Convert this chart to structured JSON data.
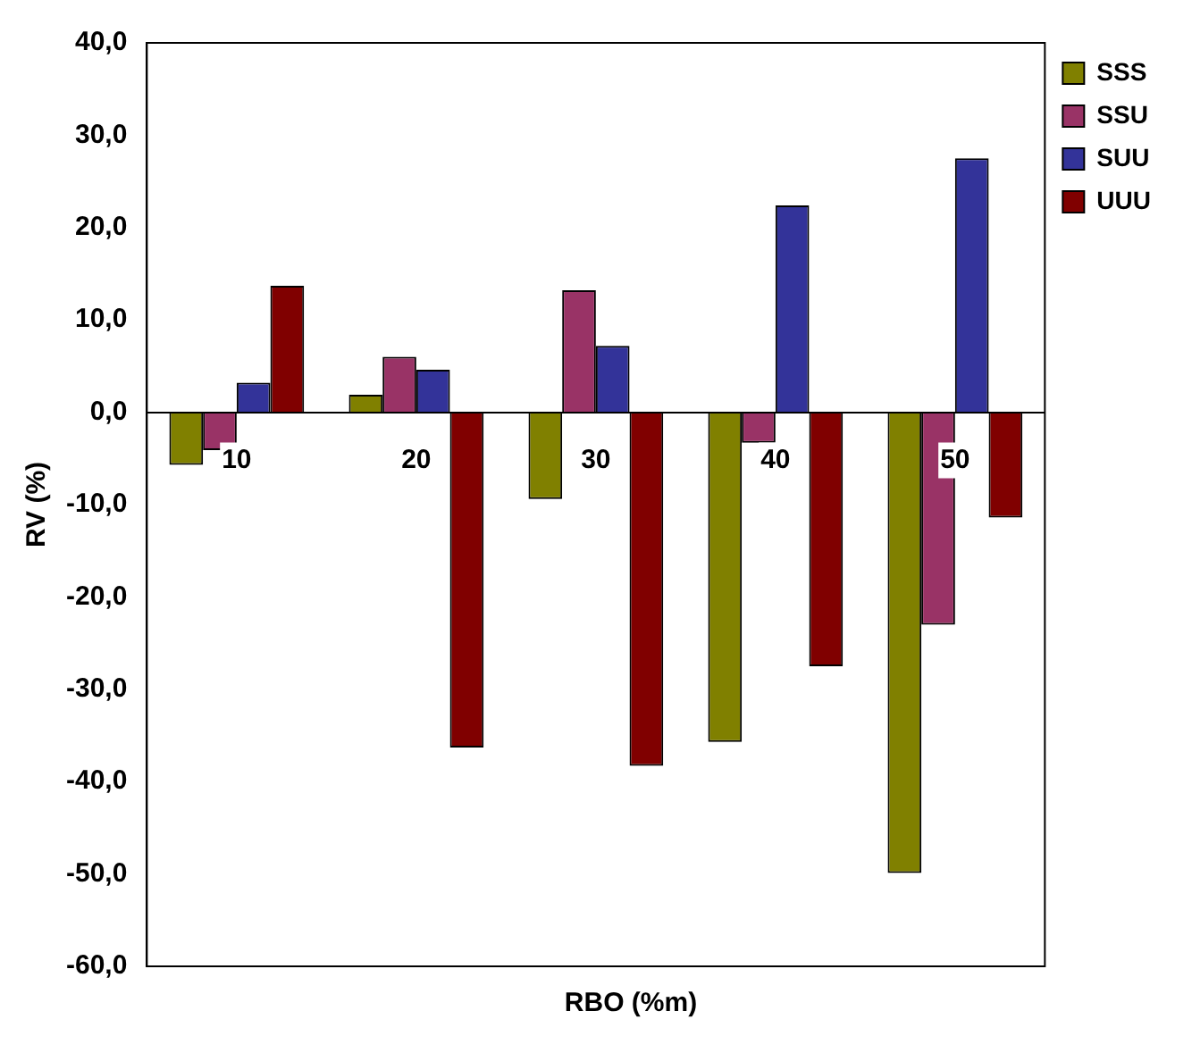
{
  "chart_data": {
    "type": "bar",
    "xlabel": "RBO (%m)",
    "ylabel": "RV (%)",
    "categories": [
      "10",
      "20",
      "30",
      "40",
      "50"
    ],
    "series": [
      {
        "name": "SSS",
        "color": "#808000",
        "values": [
          -5.7,
          1.9,
          -9.4,
          -35.7,
          -49.9
        ]
      },
      {
        "name": "SSU",
        "color": "#993366",
        "values": [
          -4.1,
          6.0,
          13.2,
          -3.3,
          -23.0
        ]
      },
      {
        "name": "SUU",
        "color": "#333399",
        "values": [
          3.2,
          4.6,
          7.2,
          22.4,
          27.5
        ]
      },
      {
        "name": "UUU",
        "color": "#800000",
        "values": [
          13.7,
          -36.3,
          -38.3,
          -27.5,
          -11.4
        ]
      }
    ],
    "ylim": [
      -60,
      40
    ],
    "yticks": [
      {
        "value": -60,
        "label": "-60,0"
      },
      {
        "value": -50,
        "label": "-50,0"
      },
      {
        "value": -40,
        "label": "-40,0"
      },
      {
        "value": -30,
        "label": "-30,0"
      },
      {
        "value": -20,
        "label": "-20,0"
      },
      {
        "value": -10,
        "label": "-10,0"
      },
      {
        "value": 0,
        "label": "0,0"
      },
      {
        "value": 10,
        "label": "10,0"
      },
      {
        "value": 20,
        "label": "20,0"
      },
      {
        "value": 30,
        "label": "30,0"
      },
      {
        "value": 40,
        "label": "40,0"
      }
    ],
    "grid": false,
    "legend": "top right"
  }
}
